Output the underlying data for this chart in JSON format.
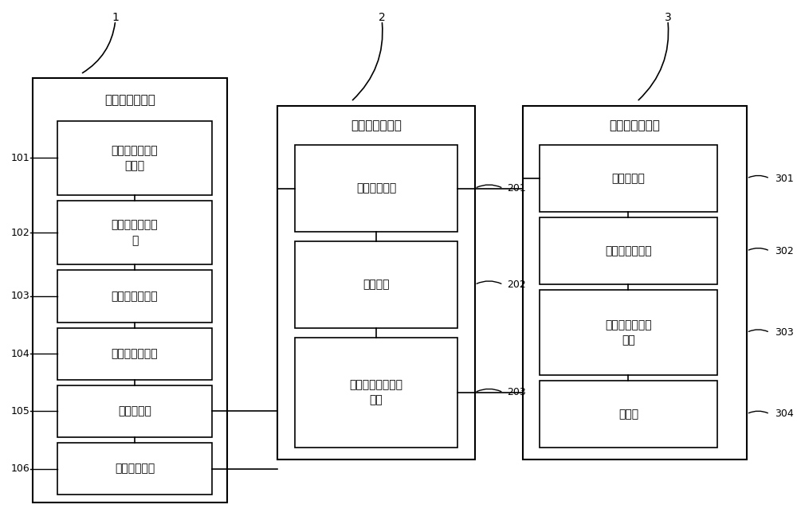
{
  "bg_color": "#ffffff",
  "line_color": "#000000",
  "box_fill": "#ffffff",
  "font_size_title": 11,
  "font_size_box": 10,
  "font_size_label": 9,
  "font_size_num": 9,
  "s1": {
    "title": "道口控制子系统",
    "num": "1",
    "items": [
      {
        "num": "101",
        "text": "车辆接近驶离检\n测装置"
      },
      {
        "num": "102",
        "text": "车辆占位检测装\n置"
      },
      {
        "num": "103",
        "text": "栏木机控制装置"
      },
      {
        "num": "104",
        "text": "信号灯控制装置"
      },
      {
        "num": "105",
        "text": "综合控制柜"
      },
      {
        "num": "106",
        "text": "视频监控装置"
      }
    ]
  },
  "s2": {
    "title": "传输网络子系统",
    "num": "2",
    "items": [
      {
        "num": "201",
        "text": "现场交换设备"
      },
      {
        "num": "202",
        "text": "传输链路"
      },
      {
        "num": "203",
        "text": "控制中心汇集交换\n设备"
      }
    ]
  },
  "s3": {
    "title": "控制中心子系统",
    "num": "3",
    "items": [
      {
        "num": "301",
        "text": "通信服务器"
      },
      {
        "num": "302",
        "text": "视频管理服务器"
      },
      {
        "num": "303",
        "text": "视频存储管理服\n务器"
      },
      {
        "num": "304",
        "text": "工作站"
      }
    ]
  }
}
